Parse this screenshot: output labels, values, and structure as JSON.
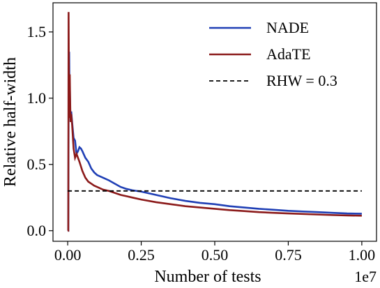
{
  "chart_data": {
    "type": "line",
    "title": "",
    "xlabel": "Number of tests",
    "ylabel": "Relative half-width",
    "x_offset_label": "1e7",
    "xlim": [
      -0.05,
      1.05
    ],
    "ylim": [
      -0.08,
      1.72
    ],
    "xticks": [
      0.0,
      0.25,
      0.5,
      0.75,
      1.0
    ],
    "xtick_labels": [
      "0.00",
      "0.25",
      "0.50",
      "0.75",
      "1.00"
    ],
    "yticks": [
      0.0,
      0.5,
      1.0,
      1.5
    ],
    "ytick_labels": [
      "0.0",
      "0.5",
      "1.0",
      "1.5"
    ],
    "grid": false,
    "legend_position": "top-right",
    "series": [
      {
        "name": "NADE",
        "color": "#1f3fb5",
        "style": "solid",
        "points": [
          [
            0.0,
            0.0
          ],
          [
            0.002,
            0.0
          ],
          [
            0.003,
            0.9
          ],
          [
            0.004,
            1.1
          ],
          [
            0.005,
            1.35
          ],
          [
            0.006,
            1.05
          ],
          [
            0.007,
            1.12
          ],
          [
            0.008,
            0.96
          ],
          [
            0.009,
            0.88
          ],
          [
            0.01,
            0.85
          ],
          [
            0.012,
            0.9
          ],
          [
            0.015,
            0.82
          ],
          [
            0.02,
            0.7
          ],
          [
            0.025,
            0.68
          ],
          [
            0.03,
            0.58
          ],
          [
            0.035,
            0.6
          ],
          [
            0.04,
            0.63
          ],
          [
            0.045,
            0.62
          ],
          [
            0.05,
            0.6
          ],
          [
            0.06,
            0.55
          ],
          [
            0.07,
            0.52
          ],
          [
            0.08,
            0.47
          ],
          [
            0.09,
            0.44
          ],
          [
            0.1,
            0.42
          ],
          [
            0.12,
            0.4
          ],
          [
            0.14,
            0.38
          ],
          [
            0.16,
            0.355
          ],
          [
            0.18,
            0.33
          ],
          [
            0.2,
            0.315
          ],
          [
            0.22,
            0.305
          ],
          [
            0.25,
            0.295
          ],
          [
            0.3,
            0.27
          ],
          [
            0.35,
            0.245
          ],
          [
            0.4,
            0.225
          ],
          [
            0.45,
            0.21
          ],
          [
            0.5,
            0.2
          ],
          [
            0.55,
            0.185
          ],
          [
            0.6,
            0.175
          ],
          [
            0.65,
            0.165
          ],
          [
            0.7,
            0.158
          ],
          [
            0.75,
            0.15
          ],
          [
            0.8,
            0.145
          ],
          [
            0.85,
            0.14
          ],
          [
            0.9,
            0.135
          ],
          [
            0.95,
            0.13
          ],
          [
            1.0,
            0.128
          ]
        ]
      },
      {
        "name": "AdaTE",
        "color": "#8b1a1a",
        "style": "solid",
        "points": [
          [
            0.0,
            0.0
          ],
          [
            0.002,
            0.0
          ],
          [
            0.003,
            1.65
          ],
          [
            0.004,
            1.2
          ],
          [
            0.005,
            0.85
          ],
          [
            0.006,
            1.1
          ],
          [
            0.007,
            1.18
          ],
          [
            0.008,
            1.02
          ],
          [
            0.009,
            0.9
          ],
          [
            0.01,
            0.82
          ],
          [
            0.012,
            0.88
          ],
          [
            0.015,
            0.8
          ],
          [
            0.02,
            0.62
          ],
          [
            0.025,
            0.55
          ],
          [
            0.03,
            0.58
          ],
          [
            0.04,
            0.52
          ],
          [
            0.05,
            0.45
          ],
          [
            0.06,
            0.4
          ],
          [
            0.07,
            0.37
          ],
          [
            0.08,
            0.355
          ],
          [
            0.09,
            0.34
          ],
          [
            0.1,
            0.33
          ],
          [
            0.12,
            0.31
          ],
          [
            0.14,
            0.3
          ],
          [
            0.16,
            0.285
          ],
          [
            0.18,
            0.27
          ],
          [
            0.2,
            0.26
          ],
          [
            0.22,
            0.25
          ],
          [
            0.25,
            0.235
          ],
          [
            0.3,
            0.215
          ],
          [
            0.35,
            0.2
          ],
          [
            0.4,
            0.185
          ],
          [
            0.45,
            0.175
          ],
          [
            0.5,
            0.165
          ],
          [
            0.55,
            0.155
          ],
          [
            0.6,
            0.148
          ],
          [
            0.65,
            0.14
          ],
          [
            0.7,
            0.135
          ],
          [
            0.75,
            0.13
          ],
          [
            0.8,
            0.126
          ],
          [
            0.85,
            0.122
          ],
          [
            0.9,
            0.118
          ],
          [
            0.95,
            0.115
          ],
          [
            1.0,
            0.113
          ]
        ]
      },
      {
        "name": "RHW = 0.3",
        "color": "#000000",
        "style": "dashed",
        "points": [
          [
            0.0,
            0.3
          ],
          [
            1.0,
            0.3
          ]
        ]
      }
    ]
  }
}
